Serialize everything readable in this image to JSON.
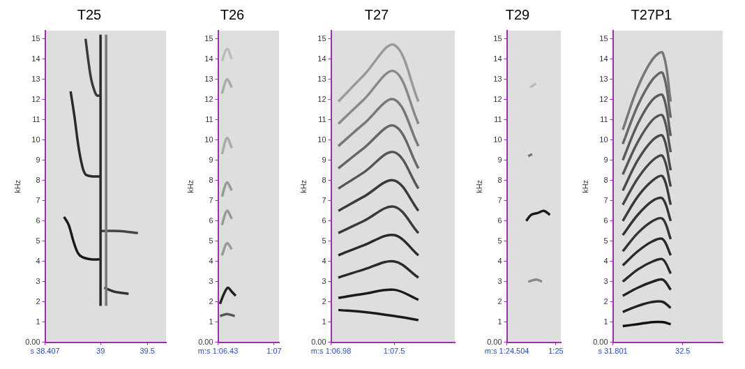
{
  "chart_data": [
    {
      "type": "line",
      "title": "T25",
      "ylabel": "kHz",
      "grid": false,
      "xlim": [
        38.407,
        39.7
      ],
      "xticks": [
        {
          "value": 38.407,
          "label": "s 38.407"
        },
        39,
        39.5
      ],
      "ylim": [
        0,
        15.4
      ],
      "yticks": [
        {
          "value": 0,
          "label": "0.00"
        },
        1,
        2,
        3,
        4,
        5,
        6,
        7,
        8,
        9,
        10,
        11,
        12,
        13,
        14,
        15
      ],
      "series": [
        {
          "color": "#1a1a1a",
          "x": [
            38.61,
            38.66,
            38.71,
            38.76,
            38.81,
            38.9,
            38.99
          ],
          "values": [
            6.2,
            5.8,
            5.0,
            4.4,
            4.2,
            4.1,
            4.1
          ]
        },
        {
          "color": "#2a2a2a",
          "x": [
            38.68,
            38.72,
            38.76,
            38.8,
            38.84,
            38.92,
            39.0
          ],
          "values": [
            12.4,
            11.2,
            9.8,
            8.8,
            8.3,
            8.2,
            8.2
          ]
        },
        {
          "color": "#3a3a3a",
          "x": [
            38.84,
            38.87,
            38.9,
            38.93,
            38.96,
            39.0
          ],
          "values": [
            15.0,
            13.9,
            13.0,
            12.5,
            12.2,
            12.2
          ]
        },
        {
          "color": "#2a2a2a",
          "x": [
            39.0,
            39.0
          ],
          "values": [
            1.8,
            15.2
          ]
        },
        {
          "color": "#777777",
          "x": [
            39.06,
            39.06
          ],
          "values": [
            1.8,
            15.2
          ]
        },
        {
          "color": "#444444",
          "x": [
            39.0,
            39.2,
            39.4
          ],
          "values": [
            5.5,
            5.5,
            5.4
          ]
        },
        {
          "color": "#333333",
          "x": [
            39.04,
            39.15,
            39.3
          ],
          "values": [
            2.7,
            2.5,
            2.4
          ]
        }
      ]
    },
    {
      "type": "line",
      "title": "T26",
      "ylabel": "kHz",
      "grid": false,
      "xlim": [
        66.43,
        67.05
      ],
      "xticks": [
        {
          "value": 66.43,
          "label": "m:s 1:06.43"
        },
        {
          "value": 67,
          "label": "1:07"
        }
      ],
      "ylim": [
        0,
        15.4
      ],
      "yticks": [
        {
          "value": 0,
          "label": "0.00"
        },
        1,
        2,
        3,
        4,
        5,
        6,
        7,
        8,
        9,
        10,
        11,
        12,
        13,
        14,
        15
      ],
      "series": [
        {
          "color": "#222222",
          "x": [
            66.45,
            66.49,
            66.53,
            66.57,
            66.61
          ],
          "values": [
            1.9,
            2.4,
            2.7,
            2.5,
            2.3
          ]
        },
        {
          "color": "#555555",
          "x": [
            66.45,
            66.52,
            66.6
          ],
          "values": [
            1.3,
            1.4,
            1.3
          ]
        },
        {
          "color": "#999999",
          "x": [
            66.47,
            66.52,
            66.57
          ],
          "values": [
            4.3,
            4.9,
            4.6
          ]
        },
        {
          "color": "#999999",
          "x": [
            66.47,
            66.52,
            66.57
          ],
          "values": [
            5.8,
            6.5,
            6.1
          ]
        },
        {
          "color": "#999999",
          "x": [
            66.47,
            66.52,
            66.57
          ],
          "values": [
            7.2,
            7.9,
            7.5
          ]
        },
        {
          "color": "#aaaaaa",
          "x": [
            66.47,
            66.52,
            66.57
          ],
          "values": [
            9.3,
            10.1,
            9.6
          ]
        },
        {
          "color": "#aaaaaa",
          "x": [
            66.47,
            66.52,
            66.57
          ],
          "values": [
            12.3,
            13.0,
            12.6
          ]
        },
        {
          "color": "#bbbbbb",
          "x": [
            66.47,
            66.52,
            66.57
          ],
          "values": [
            13.9,
            14.5,
            14.0
          ]
        }
      ]
    },
    {
      "type": "line",
      "title": "T27",
      "ylabel": "kHz",
      "grid": false,
      "xlim": [
        66.98,
        68.0
      ],
      "xticks": [
        {
          "value": 66.98,
          "label": "m:s 1:06.98"
        },
        {
          "value": 67.5,
          "label": "1:07.5"
        }
      ],
      "ylim": [
        0,
        15.4
      ],
      "yticks": [
        {
          "value": 0,
          "label": "0.00"
        },
        1,
        2,
        3,
        4,
        5,
        6,
        7,
        8,
        9,
        10,
        11,
        12,
        13,
        14,
        15
      ],
      "series": [
        {
          "color": "#1a1a1a",
          "x": [
            67.04,
            67.25,
            67.5,
            67.7
          ],
          "values": [
            1.6,
            1.5,
            1.3,
            1.1
          ]
        },
        {
          "color": "#1a1a1a",
          "x": [
            67.04,
            67.25,
            67.5,
            67.7
          ],
          "values": [
            2.2,
            2.4,
            2.6,
            2.1
          ]
        },
        {
          "color": "#2a2a2a",
          "x": [
            67.04,
            67.25,
            67.5,
            67.7
          ],
          "values": [
            3.2,
            3.6,
            4.0,
            3.2
          ]
        },
        {
          "color": "#2a2a2a",
          "x": [
            67.04,
            67.25,
            67.5,
            67.7
          ],
          "values": [
            4.3,
            4.8,
            5.3,
            4.3
          ]
        },
        {
          "color": "#3a3a3a",
          "x": [
            67.04,
            67.25,
            67.5,
            67.7
          ],
          "values": [
            5.4,
            6.0,
            6.7,
            5.4
          ]
        },
        {
          "color": "#3a3a3a",
          "x": [
            67.04,
            67.25,
            67.5,
            67.7
          ],
          "values": [
            6.5,
            7.2,
            8.0,
            6.5
          ]
        },
        {
          "color": "#555555",
          "x": [
            67.04,
            67.25,
            67.5,
            67.7
          ],
          "values": [
            7.6,
            8.4,
            9.4,
            7.6
          ]
        },
        {
          "color": "#666666",
          "x": [
            67.04,
            67.25,
            67.5,
            67.7
          ],
          "values": [
            8.6,
            9.6,
            10.7,
            8.6
          ]
        },
        {
          "color": "#777777",
          "x": [
            67.04,
            67.25,
            67.5,
            67.7
          ],
          "values": [
            9.7,
            10.8,
            12.0,
            9.7
          ]
        },
        {
          "color": "#888888",
          "x": [
            67.04,
            67.25,
            67.5,
            67.7
          ],
          "values": [
            10.8,
            12.0,
            13.4,
            10.8
          ]
        },
        {
          "color": "#999999",
          "x": [
            67.04,
            67.25,
            67.5,
            67.7
          ],
          "values": [
            11.9,
            13.2,
            14.7,
            11.9
          ]
        }
      ]
    },
    {
      "type": "line",
      "title": "T29",
      "ylabel": "kHz",
      "grid": false,
      "xlim": [
        84.504,
        85.05
      ],
      "xticks": [
        {
          "value": 84.504,
          "label": "m:s 1:24.504"
        },
        {
          "value": 85,
          "label": "1:25"
        }
      ],
      "ylim": [
        0,
        15.4
      ],
      "yticks": [
        {
          "value": 0,
          "label": "0.00"
        },
        1,
        2,
        3,
        4,
        5,
        6,
        7,
        8,
        9,
        10,
        11,
        12,
        13,
        14,
        15
      ],
      "series": [
        {
          "color": "#1a1a1a",
          "x": [
            84.7,
            84.75,
            84.82,
            84.88,
            84.94
          ],
          "values": [
            6.0,
            6.3,
            6.4,
            6.5,
            6.3
          ]
        },
        {
          "color": "#888888",
          "x": [
            84.72,
            84.8,
            84.86
          ],
          "values": [
            3.0,
            3.1,
            3.0
          ]
        },
        {
          "color": "#777777",
          "x": [
            84.72,
            84.76
          ],
          "values": [
            9.2,
            9.3
          ]
        },
        {
          "color": "#bbbbbb",
          "x": [
            84.74,
            84.8
          ],
          "values": [
            12.6,
            12.8
          ]
        }
      ]
    },
    {
      "type": "line",
      "title": "T27P1",
      "ylabel": "kHz",
      "grid": false,
      "xlim": [
        31.801,
        32.9
      ],
      "xticks": [
        {
          "value": 31.801,
          "label": "s 31.801"
        },
        32.5
      ],
      "ylim": [
        0,
        15.4
      ],
      "yticks": [
        {
          "value": 0,
          "label": "0.00"
        },
        1,
        2,
        3,
        4,
        5,
        6,
        7,
        8,
        9,
        10,
        11,
        12,
        13,
        14,
        15
      ],
      "series": [
        {
          "color": "#111111",
          "x": [
            31.9,
            32.05,
            32.2,
            32.3,
            32.38
          ],
          "values": [
            0.8,
            0.9,
            1.0,
            1.0,
            0.9
          ]
        },
        {
          "color": "#222222",
          "x": [
            31.9,
            32.05,
            32.2,
            32.3,
            32.38
          ],
          "values": [
            1.5,
            1.8,
            2.0,
            2.0,
            1.7
          ]
        },
        {
          "color": "#222222",
          "x": [
            31.9,
            32.05,
            32.2,
            32.3,
            32.38
          ],
          "values": [
            2.3,
            2.7,
            3.0,
            3.1,
            2.6
          ]
        },
        {
          "color": "#2a2a2a",
          "x": [
            31.9,
            32.05,
            32.2,
            32.3,
            32.38
          ],
          "values": [
            3.0,
            3.6,
            4.0,
            4.1,
            3.4
          ]
        },
        {
          "color": "#2a2a2a",
          "x": [
            31.9,
            32.05,
            32.2,
            32.3,
            32.38
          ],
          "values": [
            3.8,
            4.5,
            5.0,
            5.1,
            4.3
          ]
        },
        {
          "color": "#333333",
          "x": [
            31.9,
            32.05,
            32.2,
            32.3,
            32.38
          ],
          "values": [
            4.5,
            5.4,
            6.0,
            6.1,
            5.1
          ]
        },
        {
          "color": "#333333",
          "x": [
            31.9,
            32.05,
            32.2,
            32.3,
            32.38
          ],
          "values": [
            5.3,
            6.3,
            7.0,
            7.1,
            6.0
          ]
        },
        {
          "color": "#3a3a3a",
          "x": [
            31.9,
            32.05,
            32.2,
            32.3,
            32.38
          ],
          "values": [
            6.0,
            7.2,
            8.0,
            8.2,
            6.8
          ]
        },
        {
          "color": "#444444",
          "x": [
            31.9,
            32.05,
            32.2,
            32.3,
            32.38
          ],
          "values": [
            6.8,
            8.1,
            9.0,
            9.2,
            7.7
          ]
        },
        {
          "color": "#4a4a4a",
          "x": [
            31.9,
            32.05,
            32.2,
            32.3,
            32.38
          ],
          "values": [
            7.5,
            9.0,
            10.0,
            10.2,
            8.5
          ]
        },
        {
          "color": "#555555",
          "x": [
            31.9,
            32.05,
            32.2,
            32.3,
            32.38
          ],
          "values": [
            8.3,
            9.9,
            11.0,
            11.2,
            9.4
          ]
        },
        {
          "color": "#5a5a5a",
          "x": [
            31.9,
            32.05,
            32.2,
            32.3,
            32.38
          ],
          "values": [
            9.0,
            10.8,
            12.0,
            12.2,
            10.2
          ]
        },
        {
          "color": "#666666",
          "x": [
            31.9,
            32.05,
            32.2,
            32.3,
            32.38
          ],
          "values": [
            9.8,
            11.7,
            13.0,
            13.3,
            11.1
          ]
        },
        {
          "color": "#777777",
          "x": [
            31.9,
            32.05,
            32.2,
            32.3,
            32.38
          ],
          "values": [
            10.5,
            12.6,
            14.0,
            14.3,
            11.9
          ]
        }
      ]
    }
  ]
}
